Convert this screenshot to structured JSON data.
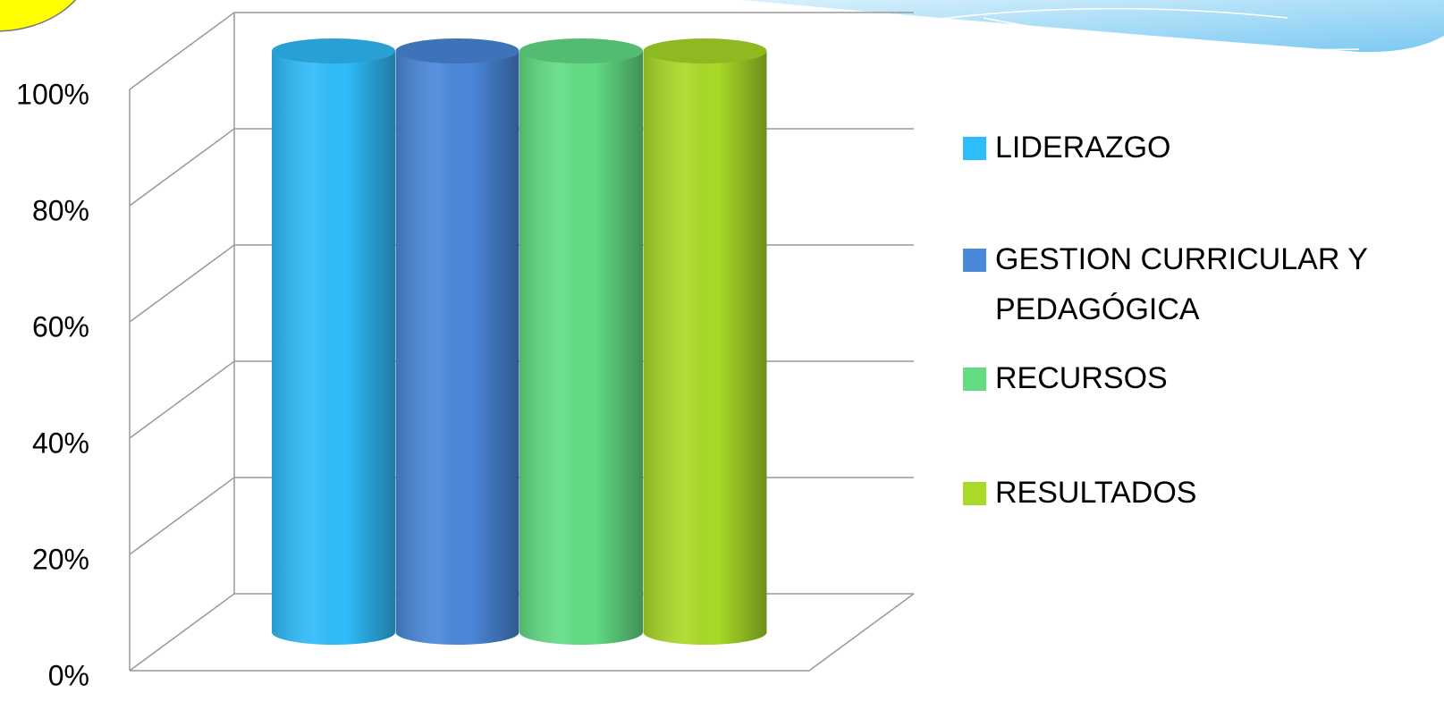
{
  "chart_data": {
    "type": "bar",
    "categories": [
      null
    ],
    "series": [
      {
        "name": "LIDERAZGO",
        "color": "#2fbcfa",
        "values": [
          100
        ]
      },
      {
        "name": "GESTION CURRICULAR Y PEDAGÓGICA",
        "color": "#4a88da",
        "values": [
          100
        ]
      },
      {
        "name": "RECURSOS",
        "color": "#62dd84",
        "values": [
          100
        ]
      },
      {
        "name": "RESULTADOS",
        "color": "#a9da27",
        "values": [
          100
        ]
      }
    ],
    "ylim": [
      0,
      100
    ],
    "yticks": [
      {
        "value": 0,
        "label": "0%"
      },
      {
        "value": 20,
        "label": "20%"
      },
      {
        "value": 40,
        "label": "40%"
      },
      {
        "value": 60,
        "label": "60%"
      },
      {
        "value": 80,
        "label": "80%"
      },
      {
        "value": 100,
        "label": "100%"
      }
    ],
    "grid": true,
    "legend": "right"
  }
}
